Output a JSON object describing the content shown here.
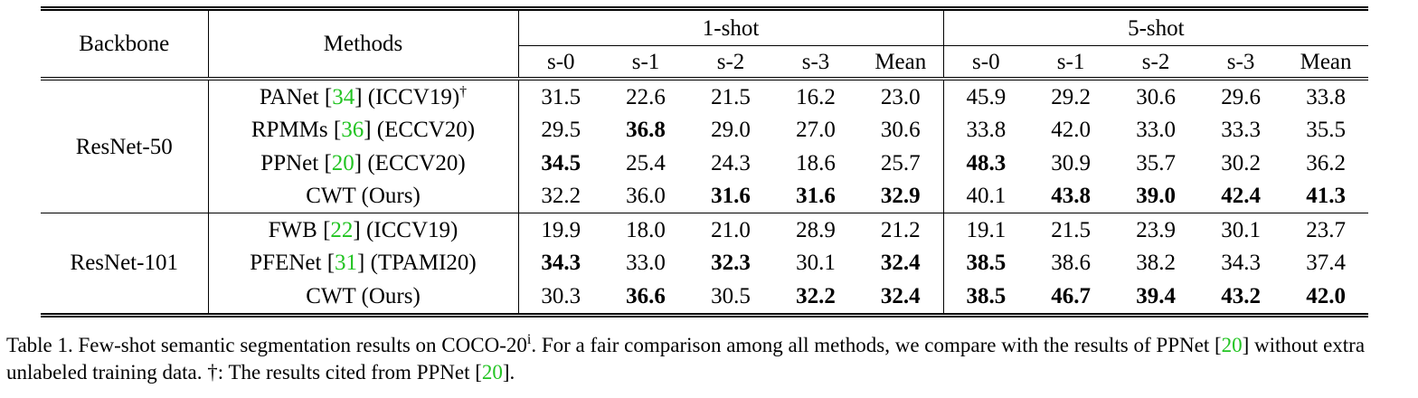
{
  "table": {
    "header": {
      "backbone": "Backbone",
      "methods": "Methods",
      "groups": [
        "1-shot",
        "5-shot"
      ],
      "splits": [
        "s-0",
        "s-1",
        "s-2",
        "s-3",
        "Mean",
        "s-0",
        "s-1",
        "s-2",
        "s-3",
        "Mean"
      ]
    },
    "groups": [
      {
        "backbone": "ResNet-50",
        "rows": [
          {
            "method": [
              {
                "text": "PANet ["
              },
              {
                "text": "34",
                "ref": true
              },
              {
                "text": "] (ICCV19)"
              },
              {
                "text": "†",
                "sup": true
              }
            ],
            "values": [
              "31.5",
              "22.6",
              "21.5",
              "16.2",
              "23.0",
              "45.9",
              "29.2",
              "30.6",
              "29.6",
              "33.8"
            ],
            "bold": []
          },
          {
            "method": [
              {
                "text": "RPMMs ["
              },
              {
                "text": "36",
                "ref": true
              },
              {
                "text": "] (ECCV20)"
              }
            ],
            "values": [
              "29.5",
              "36.8",
              "29.0",
              "27.0",
              "30.6",
              "33.8",
              "42.0",
              "33.0",
              "33.3",
              "35.5"
            ],
            "bold": [
              1
            ]
          },
          {
            "method": [
              {
                "text": "PPNet ["
              },
              {
                "text": "20",
                "ref": true
              },
              {
                "text": "] (ECCV20)"
              }
            ],
            "values": [
              "34.5",
              "25.4",
              "24.3",
              "18.6",
              "25.7",
              "48.3",
              "30.9",
              "35.7",
              "30.2",
              "36.2"
            ],
            "bold": [
              0,
              5
            ]
          },
          {
            "method": [
              {
                "text": "CWT (Ours)"
              }
            ],
            "values": [
              "32.2",
              "36.0",
              "31.6",
              "31.6",
              "32.9",
              "40.1",
              "43.8",
              "39.0",
              "42.4",
              "41.3"
            ],
            "bold": [
              2,
              3,
              4,
              6,
              7,
              8,
              9
            ]
          }
        ]
      },
      {
        "backbone": "ResNet-101",
        "rows": [
          {
            "method": [
              {
                "text": "FWB ["
              },
              {
                "text": "22",
                "ref": true
              },
              {
                "text": "] (ICCV19)"
              }
            ],
            "values": [
              "19.9",
              "18.0",
              "21.0",
              "28.9",
              "21.2",
              "19.1",
              "21.5",
              "23.9",
              "30.1",
              "23.7"
            ],
            "bold": []
          },
          {
            "method": [
              {
                "text": "PFENet ["
              },
              {
                "text": "31",
                "ref": true
              },
              {
                "text": "] (TPAMI20)"
              }
            ],
            "values": [
              "34.3",
              "33.0",
              "32.3",
              "30.1",
              "32.4",
              "38.5",
              "38.6",
              "38.2",
              "34.3",
              "37.4"
            ],
            "bold": [
              0,
              2,
              4,
              5
            ]
          },
          {
            "method": [
              {
                "text": "CWT (Ours)"
              }
            ],
            "values": [
              "30.3",
              "36.6",
              "30.5",
              "32.2",
              "32.4",
              "38.5",
              "46.7",
              "39.4",
              "43.2",
              "42.0"
            ],
            "bold": [
              1,
              3,
              4,
              5,
              6,
              7,
              8,
              9
            ]
          }
        ]
      }
    ]
  },
  "caption": [
    {
      "text": "Table 1. Few-shot semantic segmentation results on COCO-20"
    },
    {
      "text": "i",
      "sup": true
    },
    {
      "text": ". For a fair comparison among all methods, we compare with the results of PPNet ["
    },
    {
      "text": "20",
      "ref": true
    },
    {
      "text": "] without extra unlabeled training data. †: The results cited from PPNet ["
    },
    {
      "text": "20",
      "ref": true
    },
    {
      "text": "]."
    }
  ]
}
